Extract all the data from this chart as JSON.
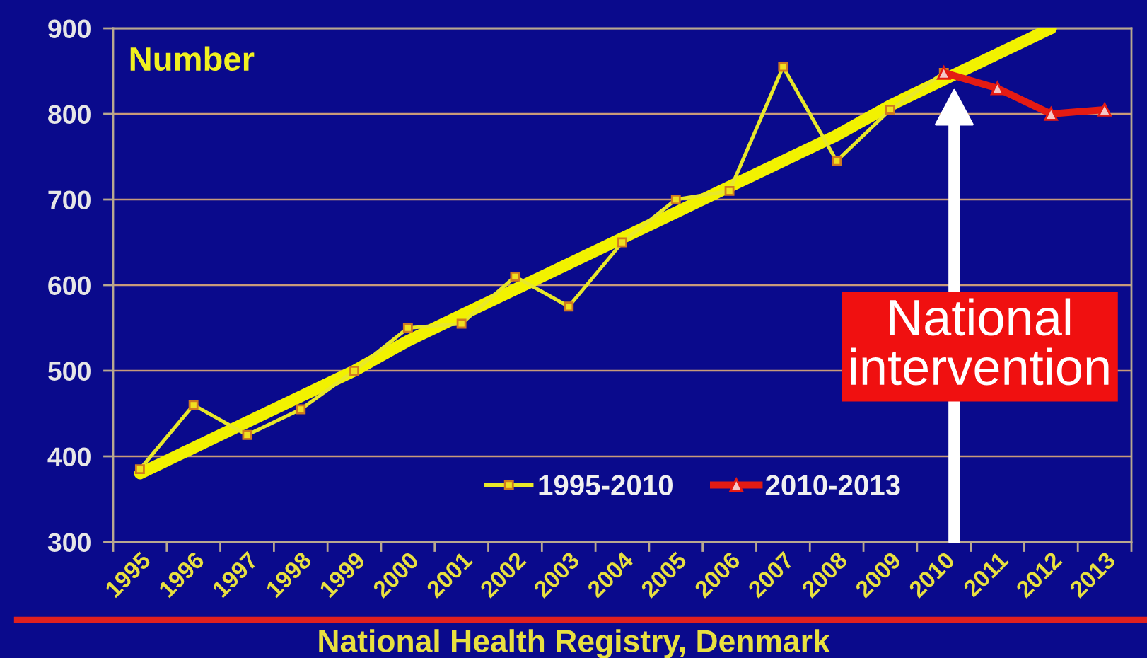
{
  "chart_data": {
    "type": "line",
    "ylabel": "Number",
    "categories": [
      "1995",
      "1996",
      "1997",
      "1998",
      "1999",
      "2000",
      "2001",
      "2002",
      "2003",
      "2004",
      "2005",
      "2006",
      "2007",
      "2008",
      "2009",
      "2010",
      "2011",
      "2012",
      "2013"
    ],
    "series": [
      {
        "name": "1995-2010",
        "color": "#e8e82a",
        "marker": "square",
        "values": [
          385,
          460,
          425,
          455,
          500,
          550,
          555,
          610,
          575,
          650,
          700,
          710,
          855,
          745,
          805,
          848,
          null,
          null,
          null
        ]
      },
      {
        "name": "2010-2013",
        "color": "#e41b13",
        "marker": "triangle",
        "values": [
          null,
          null,
          null,
          null,
          null,
          null,
          null,
          null,
          null,
          null,
          null,
          null,
          null,
          null,
          null,
          848,
          830,
          800,
          805
        ]
      },
      {
        "type": "line",
        "color": "#f2f200",
        "values": [
          380,
          410,
          440,
          470,
          500,
          535,
          565,
          595,
          625,
          655,
          685,
          715,
          745,
          775,
          810,
          840,
          870,
          900,
          null
        ]
      }
    ],
    "ylim": [
      300,
      900
    ],
    "yticks": [
      300,
      400,
      500,
      600,
      700,
      800,
      900
    ],
    "grid": "y",
    "legend": "bottom",
    "annotations": [
      "National\nintervention",
      "National Health Registry, Denmark"
    ]
  }
}
